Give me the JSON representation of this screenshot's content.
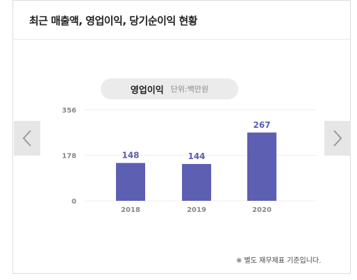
{
  "panel": {
    "title": "최근 매출액, 영업이익, 당기순이익 현황",
    "footnote": "※ 별도 재무제표 기준입니다."
  },
  "chart_header": {
    "title": "영업이익",
    "unit": "단위:백만원"
  },
  "colors": {
    "bar": "#5d5fb3",
    "value_label": "#5a5fb0",
    "pill_bg": "#ebebeb",
    "nav_bg": "#e6e6e6"
  },
  "nav": {
    "prev_icon": "chevron-left-icon",
    "next_icon": "chevron-right-icon"
  },
  "chart_data": {
    "type": "bar",
    "title": "영업이익",
    "categories": [
      "2018",
      "2019",
      "2020"
    ],
    "values": [
      148,
      144,
      267
    ],
    "yticks": [
      "0",
      "178",
      "356"
    ],
    "ylim": [
      0,
      356
    ],
    "grid": true,
    "xlabel": "",
    "ylabel": ""
  }
}
